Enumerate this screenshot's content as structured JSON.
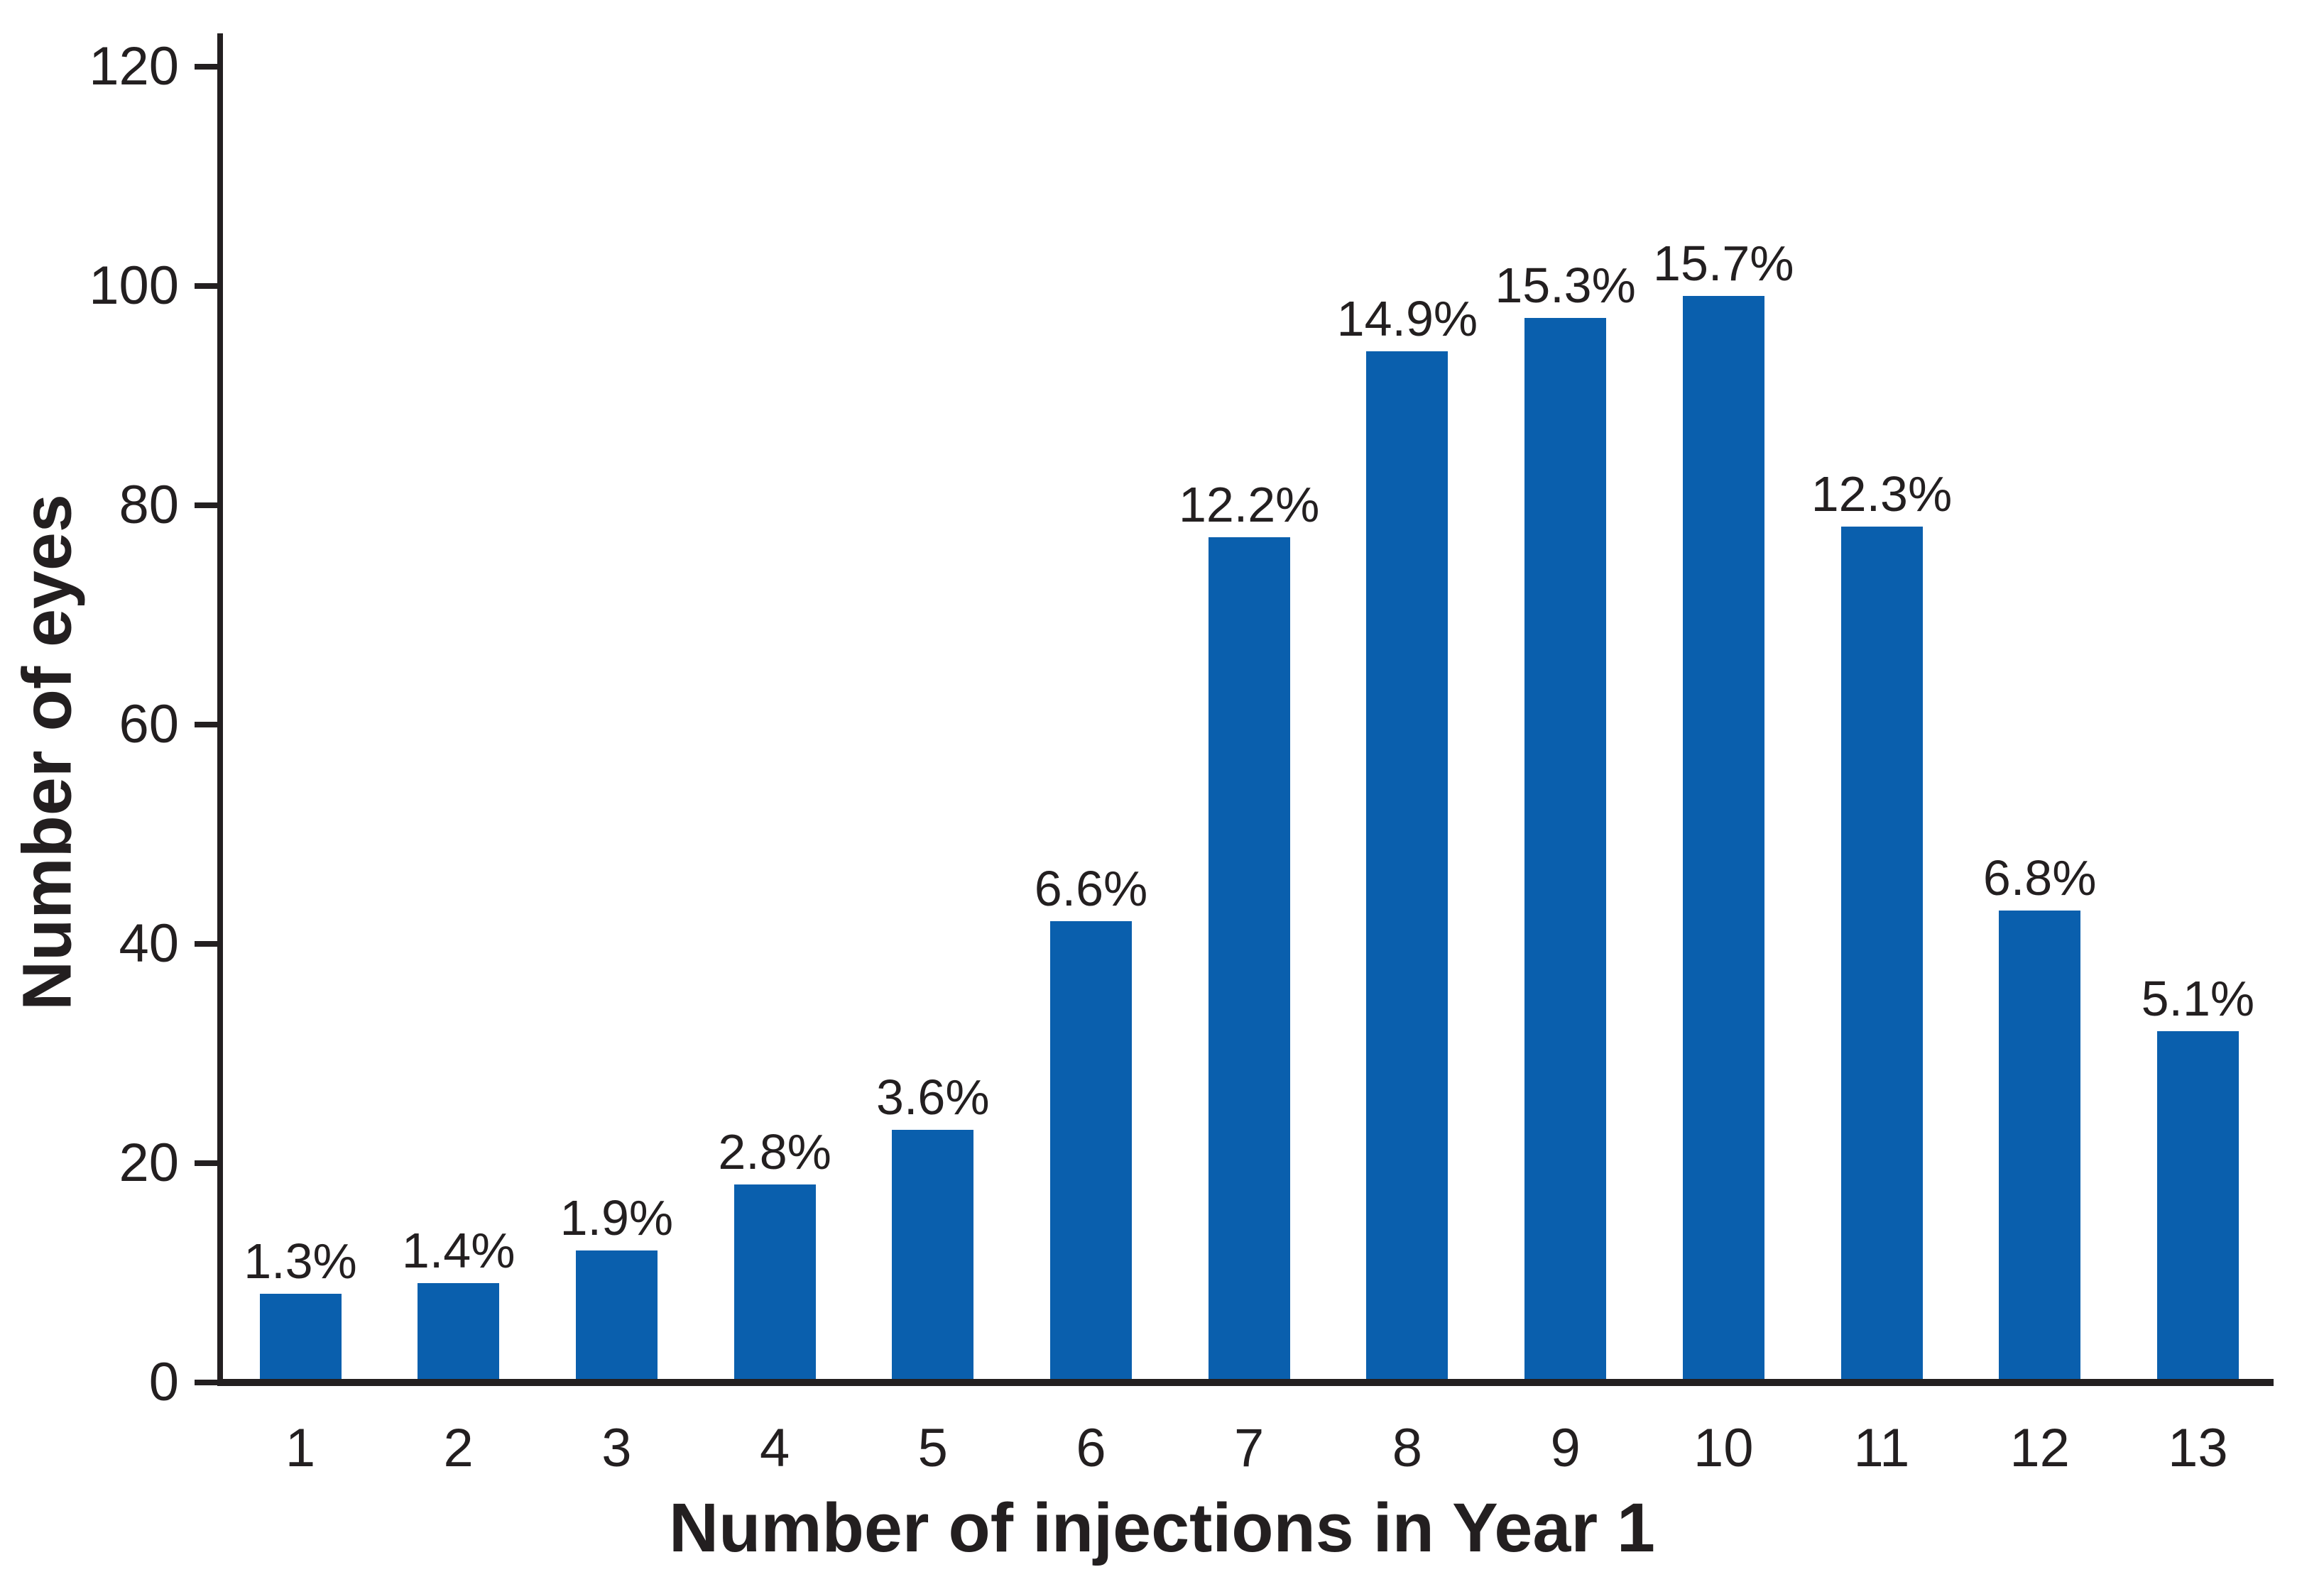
{
  "chart_data": {
    "type": "bar",
    "title": "",
    "xlabel": "Number of injections in Year 1",
    "ylabel": "Number of eyes",
    "categories": [
      "1",
      "2",
      "3",
      "4",
      "5",
      "6",
      "7",
      "8",
      "9",
      "10",
      "11",
      "12",
      "13"
    ],
    "values": [
      8,
      9,
      12,
      18,
      23,
      42,
      77,
      94,
      97,
      99,
      78,
      43,
      32
    ],
    "bar_labels": [
      "1.3%",
      "1.4%",
      "1.9%",
      "2.8%",
      "3.6%",
      "6.6%",
      "12.2%",
      "14.9%",
      "15.3%",
      "15.7%",
      "12.3%",
      "6.8%",
      "5.1%"
    ],
    "y_ticks": [
      0,
      20,
      40,
      60,
      80,
      100,
      120
    ],
    "ylim": [
      0,
      120
    ],
    "grid": false,
    "legend": "none",
    "bar_color": "#0a5fad",
    "axis_color": "#231f20",
    "background_color": "#ffffff"
  }
}
